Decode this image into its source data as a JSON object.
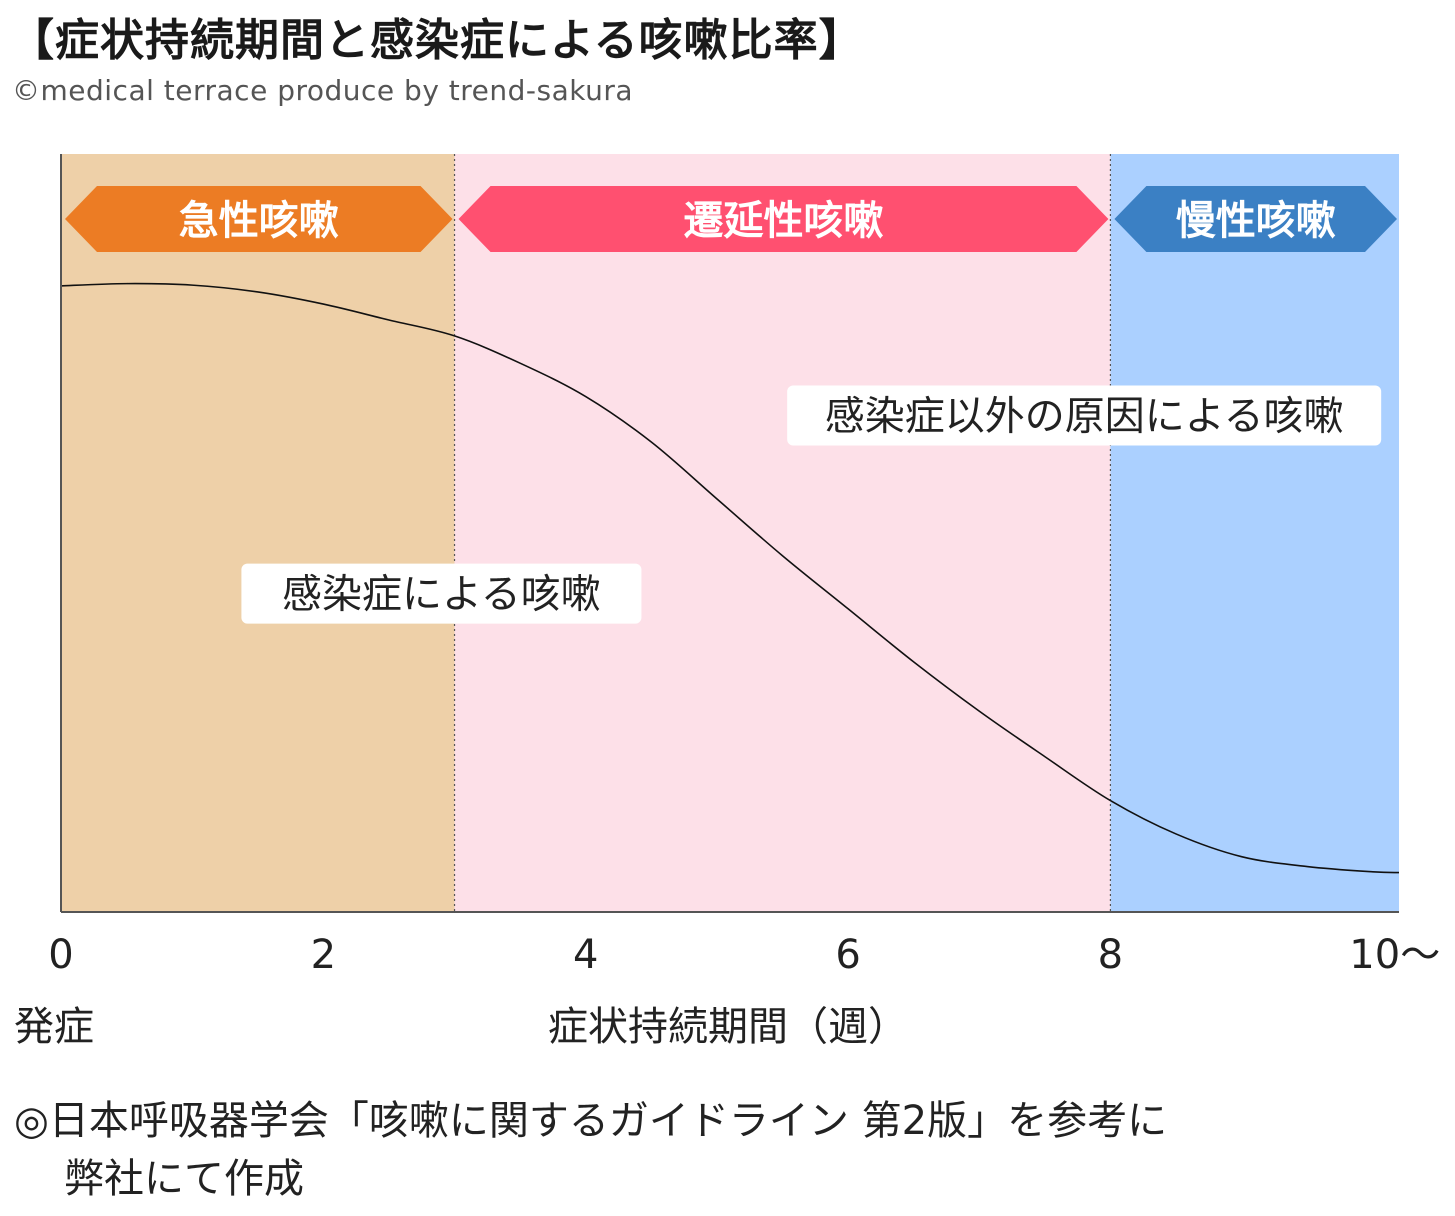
{
  "header": {
    "title": "【症状持続期間と感染症による咳嗽比率】",
    "credit": "©medical terrace produce by trend-sakura"
  },
  "chart_data": {
    "type": "area",
    "title": "【症状持続期間と感染症による咳嗽比率】",
    "xlabel": "症状持続期間（週）",
    "x_origin_label": "発症",
    "ylabel": "",
    "xlim": [
      0,
      10.2
    ],
    "ylim": [
      0,
      1
    ],
    "x_ticks": [
      0,
      2,
      4,
      6,
      8,
      10
    ],
    "x_tick_labels": [
      "0",
      "2",
      "4",
      "6",
      "8",
      "10〜"
    ],
    "grid": false,
    "phases": [
      {
        "label": "急性咳嗽",
        "start": 0,
        "end": 3,
        "band_color": "#eed0a8",
        "arrow_color": "#ec7c24"
      },
      {
        "label": "遷延性咳嗽",
        "start": 3,
        "end": 8,
        "band_color": "#fde0e8",
        "arrow_color": "#ff5070"
      },
      {
        "label": "慢性咳嗽",
        "start": 8,
        "end": 10.2,
        "band_color": "#abd0ff",
        "arrow_color": "#3b80c4"
      }
    ],
    "boundary_curve": {
      "x": [
        0,
        0.5,
        1,
        1.5,
        2,
        2.5,
        3,
        3.5,
        4,
        4.5,
        5,
        5.5,
        6,
        6.5,
        7,
        7.5,
        8,
        8.5,
        9,
        9.5,
        10,
        10.2
      ],
      "y": [
        0.826,
        0.829,
        0.827,
        0.818,
        0.802,
        0.781,
        0.76,
        0.724,
        0.68,
        0.62,
        0.545,
        0.47,
        0.4,
        0.33,
        0.265,
        0.205,
        0.147,
        0.103,
        0.073,
        0.06,
        0.053,
        0.052
      ]
    },
    "region_labels": [
      {
        "text": "感染症以外の原因による咳嗽",
        "x": 7.8,
        "y": 0.655
      },
      {
        "text": "感染症による咳嗽",
        "x": 2.9,
        "y": 0.42
      }
    ]
  },
  "footnote": {
    "line1": "◎日本呼吸器学会「咳嗽に関するガイドライン 第2版」を参考に",
    "line2": "弊社にて作成"
  }
}
